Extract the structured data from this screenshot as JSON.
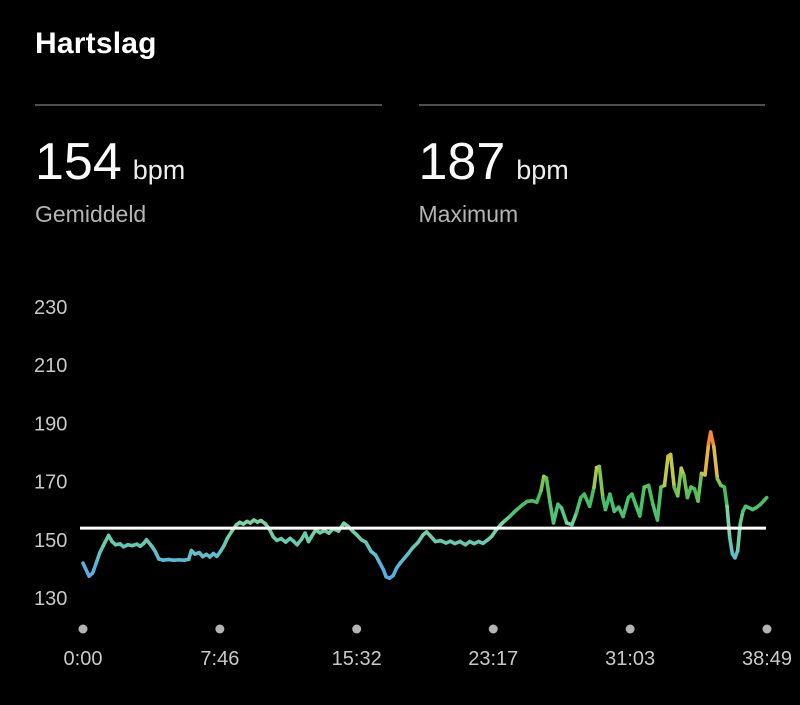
{
  "header": {
    "title": "Hartslag"
  },
  "stats": [
    {
      "value": "154",
      "unit": "bpm",
      "label": "Gemiddeld"
    },
    {
      "value": "187",
      "unit": "bpm",
      "label": "Maximum"
    }
  ],
  "colors": {
    "background": "#000000",
    "text_primary": "#ffffff",
    "text_secondary": "#b5b5b5",
    "axis_text": "#c9c9c9",
    "divider": "#4e4e4e",
    "average_line": "#ffffff",
    "tick_dot": "#b3b3b3"
  },
  "chart_data": {
    "type": "line",
    "title": "Hartslag",
    "unit": "bpm",
    "average_bpm": 154,
    "max_bpm": 187,
    "grid": false,
    "legend": false,
    "ylim": [
      125,
      235
    ],
    "y_ticks": [
      230,
      210,
      190,
      170,
      150,
      130
    ],
    "x_ticks": [
      {
        "label": "0:00",
        "t": 0
      },
      {
        "label": "7:46",
        "t": 7.767
      },
      {
        "label": "15:32",
        "t": 15.533
      },
      {
        "label": "23:17",
        "t": 23.283
      },
      {
        "label": "31:03",
        "t": 31.05
      },
      {
        "label": "38:49",
        "t": 38.817
      }
    ],
    "x_range_minutes": [
      0,
      38.817
    ],
    "zone_color_scale": [
      [
        130,
        "#5aa6ea"
      ],
      [
        140,
        "#5cacdf"
      ],
      [
        144,
        "#5dbcd0"
      ],
      [
        148,
        "#62c8b6"
      ],
      [
        152,
        "#70cfa4"
      ],
      [
        156,
        "#7ed4a6"
      ],
      [
        159,
        "#52c276"
      ],
      [
        165,
        "#45bd61"
      ],
      [
        169,
        "#72c355"
      ],
      [
        172,
        "#a9ca4c"
      ],
      [
        175,
        "#d3c945"
      ],
      [
        178,
        "#ecb03f"
      ],
      [
        181,
        "#f29d3c"
      ],
      [
        185,
        "#f1873a"
      ],
      [
        188,
        "#ee7235"
      ]
    ],
    "series": [
      {
        "name": "heart-rate",
        "points": [
          [
            0,
            142
          ],
          [
            0.15,
            140
          ],
          [
            0.35,
            137.5
          ],
          [
            0.55,
            138.6
          ],
          [
            0.75,
            142
          ],
          [
            0.95,
            145.5
          ],
          [
            1.15,
            148
          ],
          [
            1.45,
            151.5
          ],
          [
            1.65,
            149.4
          ],
          [
            1.85,
            148.3
          ],
          [
            2.1,
            148.6
          ],
          [
            2.3,
            147.6
          ],
          [
            2.55,
            148.3
          ],
          [
            2.8,
            148
          ],
          [
            3.05,
            148.5
          ],
          [
            3.25,
            147.8
          ],
          [
            3.45,
            148.8
          ],
          [
            3.6,
            150
          ],
          [
            3.8,
            148.6
          ],
          [
            3.95,
            147.4
          ],
          [
            4.1,
            146
          ],
          [
            4.3,
            143.4
          ],
          [
            4.55,
            143
          ],
          [
            4.85,
            143.2
          ],
          [
            5.15,
            143
          ],
          [
            5.45,
            143.1
          ],
          [
            5.75,
            143
          ],
          [
            6,
            143.3
          ],
          [
            6.15,
            146.3
          ],
          [
            6.35,
            145.1
          ],
          [
            6.6,
            145.6
          ],
          [
            6.8,
            144.2
          ],
          [
            7,
            145
          ],
          [
            7.2,
            144.1
          ],
          [
            7.4,
            145.3
          ],
          [
            7.6,
            144.3
          ],
          [
            7.8,
            146
          ],
          [
            8,
            148
          ],
          [
            8.2,
            150.6
          ],
          [
            8.45,
            153
          ],
          [
            8.7,
            155.1
          ],
          [
            8.9,
            156
          ],
          [
            9.1,
            155.4
          ],
          [
            9.3,
            156.3
          ],
          [
            9.5,
            155.8
          ],
          [
            9.7,
            156.8
          ],
          [
            9.9,
            156.1
          ],
          [
            10.1,
            156.6
          ],
          [
            10.35,
            155.5
          ],
          [
            10.6,
            153.4
          ],
          [
            10.8,
            151
          ],
          [
            11,
            149.8
          ],
          [
            11.25,
            150.4
          ],
          [
            11.5,
            149.2
          ],
          [
            11.75,
            150.5
          ],
          [
            11.95,
            149.5
          ],
          [
            12.15,
            148.3
          ],
          [
            12.4,
            150.2
          ],
          [
            12.6,
            152.3
          ],
          [
            12.8,
            149.4
          ],
          [
            13,
            151.4
          ],
          [
            13.2,
            153.4
          ],
          [
            13.45,
            152.4
          ],
          [
            13.7,
            153.2
          ],
          [
            13.95,
            152.3
          ],
          [
            14.2,
            153.8
          ],
          [
            14.5,
            153
          ],
          [
            14.8,
            155.7
          ],
          [
            15.05,
            154.6
          ],
          [
            15.3,
            153
          ],
          [
            15.55,
            151.6
          ],
          [
            15.8,
            150
          ],
          [
            16.05,
            149.2
          ],
          [
            16.35,
            146
          ],
          [
            16.6,
            144.8
          ],
          [
            16.85,
            142
          ],
          [
            17.05,
            139.7
          ],
          [
            17.2,
            137.3
          ],
          [
            17.4,
            136.8
          ],
          [
            17.6,
            137.7
          ],
          [
            17.8,
            140.3
          ],
          [
            18,
            142
          ],
          [
            18.2,
            143.4
          ],
          [
            18.45,
            145.2
          ],
          [
            18.7,
            147.2
          ],
          [
            19,
            149
          ],
          [
            19.3,
            151.7
          ],
          [
            19.5,
            152.7
          ],
          [
            19.75,
            151.1
          ],
          [
            20,
            149.4
          ],
          [
            20.3,
            149.7
          ],
          [
            20.6,
            148.9
          ],
          [
            20.85,
            149.5
          ],
          [
            21.1,
            148.7
          ],
          [
            21.4,
            149.4
          ],
          [
            21.7,
            148.3
          ],
          [
            21.95,
            149.4
          ],
          [
            22.2,
            148.7
          ],
          [
            22.45,
            149.4
          ],
          [
            22.7,
            148.8
          ],
          [
            22.95,
            149.9
          ],
          [
            23.2,
            151.2
          ],
          [
            23.45,
            153.4
          ],
          [
            23.7,
            155.2
          ],
          [
            23.95,
            156.6
          ],
          [
            24.25,
            158.2
          ],
          [
            24.55,
            160
          ],
          [
            24.9,
            161.8
          ],
          [
            25.2,
            163.2
          ],
          [
            25.5,
            163.4
          ],
          [
            25.75,
            162.9
          ],
          [
            26,
            167
          ],
          [
            26.15,
            171.8
          ],
          [
            26.3,
            171.2
          ],
          [
            26.5,
            163
          ],
          [
            26.7,
            155.8
          ],
          [
            26.95,
            162.2
          ],
          [
            27.15,
            161
          ],
          [
            27.45,
            155.8
          ],
          [
            27.75,
            155.2
          ],
          [
            28,
            159.2
          ],
          [
            28.25,
            164.5
          ],
          [
            28.45,
            165.7
          ],
          [
            28.75,
            161.5
          ],
          [
            29,
            168
          ],
          [
            29.15,
            174.8
          ],
          [
            29.3,
            175.2
          ],
          [
            29.5,
            164.5
          ],
          [
            29.65,
            160.4
          ],
          [
            29.9,
            165.7
          ],
          [
            30.15,
            159.8
          ],
          [
            30.4,
            161.2
          ],
          [
            30.65,
            158
          ],
          [
            30.95,
            164.5
          ],
          [
            31.15,
            165.7
          ],
          [
            31.4,
            161.5
          ],
          [
            31.6,
            158.2
          ],
          [
            31.85,
            168.1
          ],
          [
            32.1,
            168.7
          ],
          [
            32.35,
            162
          ],
          [
            32.6,
            156.8
          ],
          [
            32.8,
            168.1
          ],
          [
            33,
            168.7
          ],
          [
            33.2,
            178.7
          ],
          [
            33.35,
            179.3
          ],
          [
            33.55,
            168.1
          ],
          [
            33.75,
            165.1
          ],
          [
            33.95,
            174.6
          ],
          [
            34.1,
            172.2
          ],
          [
            34.3,
            164.5
          ],
          [
            34.5,
            168.1
          ],
          [
            34.7,
            167.5
          ],
          [
            34.9,
            163.3
          ],
          [
            35.1,
            172.8
          ],
          [
            35.3,
            172.3
          ],
          [
            35.5,
            183
          ],
          [
            35.62,
            187
          ],
          [
            35.8,
            182
          ],
          [
            36,
            171
          ],
          [
            36.2,
            168.7
          ],
          [
            36.4,
            168.1
          ],
          [
            36.55,
            161.5
          ],
          [
            36.7,
            150.9
          ],
          [
            36.85,
            145.2
          ],
          [
            37,
            143.8
          ],
          [
            37.15,
            146.2
          ],
          [
            37.3,
            155.6
          ],
          [
            37.45,
            159.8
          ],
          [
            37.6,
            161.5
          ],
          [
            37.8,
            161
          ],
          [
            38,
            160.4
          ],
          [
            38.2,
            161
          ],
          [
            38.45,
            162.2
          ],
          [
            38.8,
            164.5
          ]
        ]
      }
    ]
  }
}
